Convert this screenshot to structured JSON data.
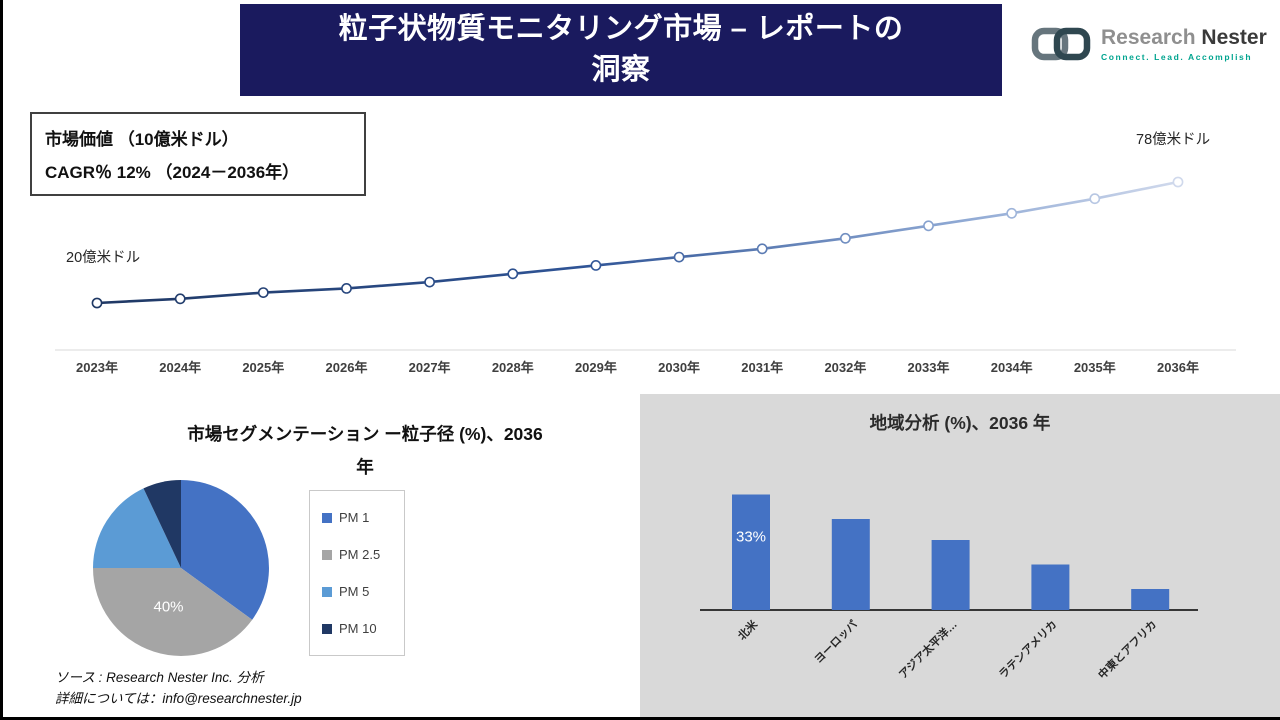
{
  "header": {
    "title_line1": "粒子状物質モニタリング市場 – レポートの",
    "title_line2": "洞察"
  },
  "logo": {
    "brand1": "Research",
    "brand2": "Nester",
    "tagline": "Connect. Lead. Accomplish"
  },
  "info_box": {
    "line1": "市場価値 （10億米ドル）",
    "line2": "CAGR％ 12% （2024－2036年）"
  },
  "pie_section": {
    "title_line1": "市場セグメンテーション ー粒子径 (%)、2036",
    "title_line2": "年"
  },
  "bar_section": {
    "title": "地域分析 (%)、2036 年"
  },
  "footer": {
    "source": "ソース : Research Nester Inc. 分析",
    "contact": "詳細については：info@researchnester.jp"
  },
  "colors": {
    "header_navy": "#1a1a5e",
    "accent_blue": "#4472c4",
    "panel_gray": "#d9d9d9",
    "tagline_teal": "#00a48f",
    "line_gradient": [
      "#1f3864",
      "#2f5496",
      "#8fa9d4",
      "#d0d9ec"
    ]
  },
  "chart_data": [
    {
      "type": "line",
      "title": "市場価値 （10億米ドル）",
      "x": [
        "2023年",
        "2024年",
        "2025年",
        "2026年",
        "2027年",
        "2028年",
        "2029年",
        "2030年",
        "2031年",
        "2032年",
        "2033年",
        "2034年",
        "2035年",
        "2036年"
      ],
      "values": [
        20,
        22,
        25,
        27,
        30,
        34,
        38,
        42,
        46,
        51,
        57,
        63,
        70,
        78
      ],
      "ylim": [
        15,
        85
      ],
      "grid": false,
      "annotations": [
        {
          "x": "2023年",
          "label": "20億米ドル"
        },
        {
          "x": "2036年",
          "label": "78億米ドル"
        }
      ],
      "cagr_note": "CAGR％ 12% （2024－2036年）"
    },
    {
      "type": "pie",
      "title": "市場セグメンテーション ー粒子径 (%)、2036 年",
      "labels": [
        "PM 1",
        "PM 2.5",
        "PM 5",
        "PM 10"
      ],
      "values": [
        35,
        40,
        18,
        7
      ],
      "colors": [
        "#4472c4",
        "#a5a5a5",
        "#5b9bd5",
        "#203864"
      ],
      "data_label": {
        "slice": "PM 2.5",
        "text": "40%"
      },
      "legend_position": "right"
    },
    {
      "type": "bar",
      "title": "地域分析 (%)、2036 年",
      "categories": [
        "北米",
        "ヨーロッパ",
        "アジア太平洋…",
        "ラテンアメリカ",
        "中東とアフリカ"
      ],
      "values": [
        33,
        26,
        20,
        13,
        6
      ],
      "bar_color": "#4472c4",
      "data_label": {
        "category": "北米",
        "text": "33%"
      }
    }
  ]
}
